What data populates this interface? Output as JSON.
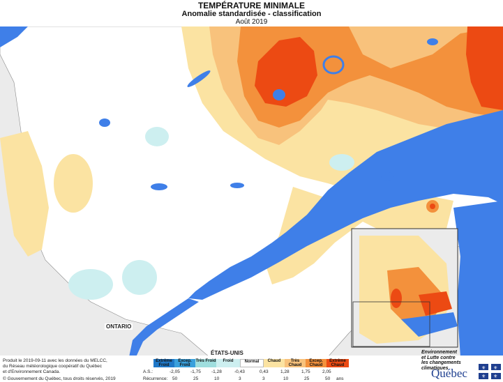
{
  "header": {
    "title": "TEMPÉRATURE MINIMALE",
    "subtitle": "Anomalie standardisée - classification",
    "period": "Août 2019"
  },
  "places": {
    "ontario": "ONTARIO",
    "usa": "ÉTATS-UNIS"
  },
  "footer": {
    "line1": "Produit le 2019-09-11 avec les données du MELCC,",
    "line2": "du Réseau météorologique coopératif du Québec",
    "line3": "et d'Environnement Canada.",
    "copyright": "© Gouvernement du Québec, tous droits réservés, 2019"
  },
  "legend": {
    "classes": [
      {
        "label": "Extrême Froid",
        "color": "#1f78c8"
      },
      {
        "label": "Excep. Froid",
        "color": "#3aa0dc"
      },
      {
        "label": "Très Froid",
        "color": "#9fdede"
      },
      {
        "label": "Froid",
        "color": "#cdeff0"
      },
      {
        "label": "Normal",
        "color": "#ffffff"
      },
      {
        "label": "Chaud",
        "color": "#fbe3a2"
      },
      {
        "label": "Très Chaud",
        "color": "#f8c27c"
      },
      {
        "label": "Excep. Chaud",
        "color": "#f3913c"
      },
      {
        "label": "Extrême Chaud",
        "color": "#ec4a13"
      }
    ],
    "as_label": "A.S.:",
    "thresholds": [
      "-2,05",
      "-1,75",
      "-1,28",
      "-0,43",
      "0,43",
      "1,28",
      "1,75",
      "2,05"
    ],
    "recurrence_label": "Récurrence:",
    "recurrence": [
      "50",
      "25",
      "10",
      "3",
      "3",
      "10",
      "25",
      "50"
    ],
    "recurrence_unit": "ans"
  },
  "logo": {
    "line1": "Environnement",
    "line2": "et Lutte contre",
    "line3": "les changements",
    "line4": "climatiques",
    "wordmark": "Québec"
  },
  "colors": {
    "water": "#5b8fe8",
    "ocean": "#3f7fe8",
    "land_outside": "#ebebeb",
    "normal": "#ffffff",
    "chaud": "#fbe3a2",
    "tres_chaud": "#f8c27c",
    "excep_chaud": "#f3913c",
    "extreme_chaud": "#ec4a13",
    "froid": "#cdeff0",
    "tres_froid": "#9fdede"
  }
}
